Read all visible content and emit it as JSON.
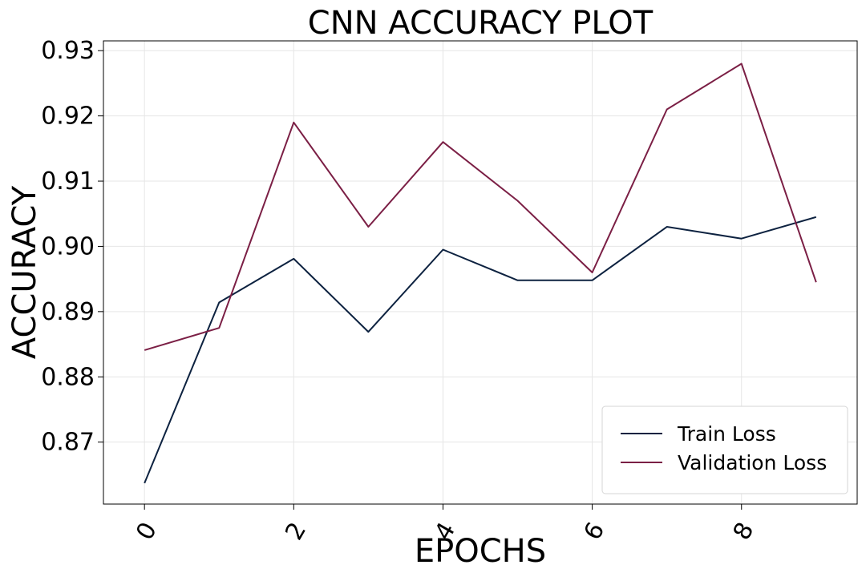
{
  "chart_data": {
    "type": "line",
    "title": "CNN ACCURACY PLOT",
    "xlabel": "EPOCHS",
    "ylabel": "ACCURACY",
    "x": [
      0,
      1,
      2,
      3,
      4,
      5,
      6,
      7,
      8,
      9
    ],
    "xticks": [
      "0",
      "2",
      "4",
      "6",
      "8"
    ],
    "yticks": [
      "0.87",
      "0.88",
      "0.89",
      "0.90",
      "0.91",
      "0.92",
      "0.93"
    ],
    "xlim": [
      -0.55,
      9.55
    ],
    "ylim": [
      0.8605,
      0.9315
    ],
    "grid": true,
    "legend_position": "lower-right",
    "series": [
      {
        "name": "Train Loss",
        "color": "#0d2240",
        "values": [
          0.8637,
          0.8914,
          0.8981,
          0.8869,
          0.8995,
          0.8948,
          0.8948,
          0.903,
          0.9012,
          0.9045
        ]
      },
      {
        "name": "Validation Loss",
        "color": "#7b1f45",
        "values": [
          0.8841,
          0.8875,
          0.919,
          0.903,
          0.916,
          0.907,
          0.896,
          0.921,
          0.928,
          0.8945
        ]
      }
    ]
  }
}
